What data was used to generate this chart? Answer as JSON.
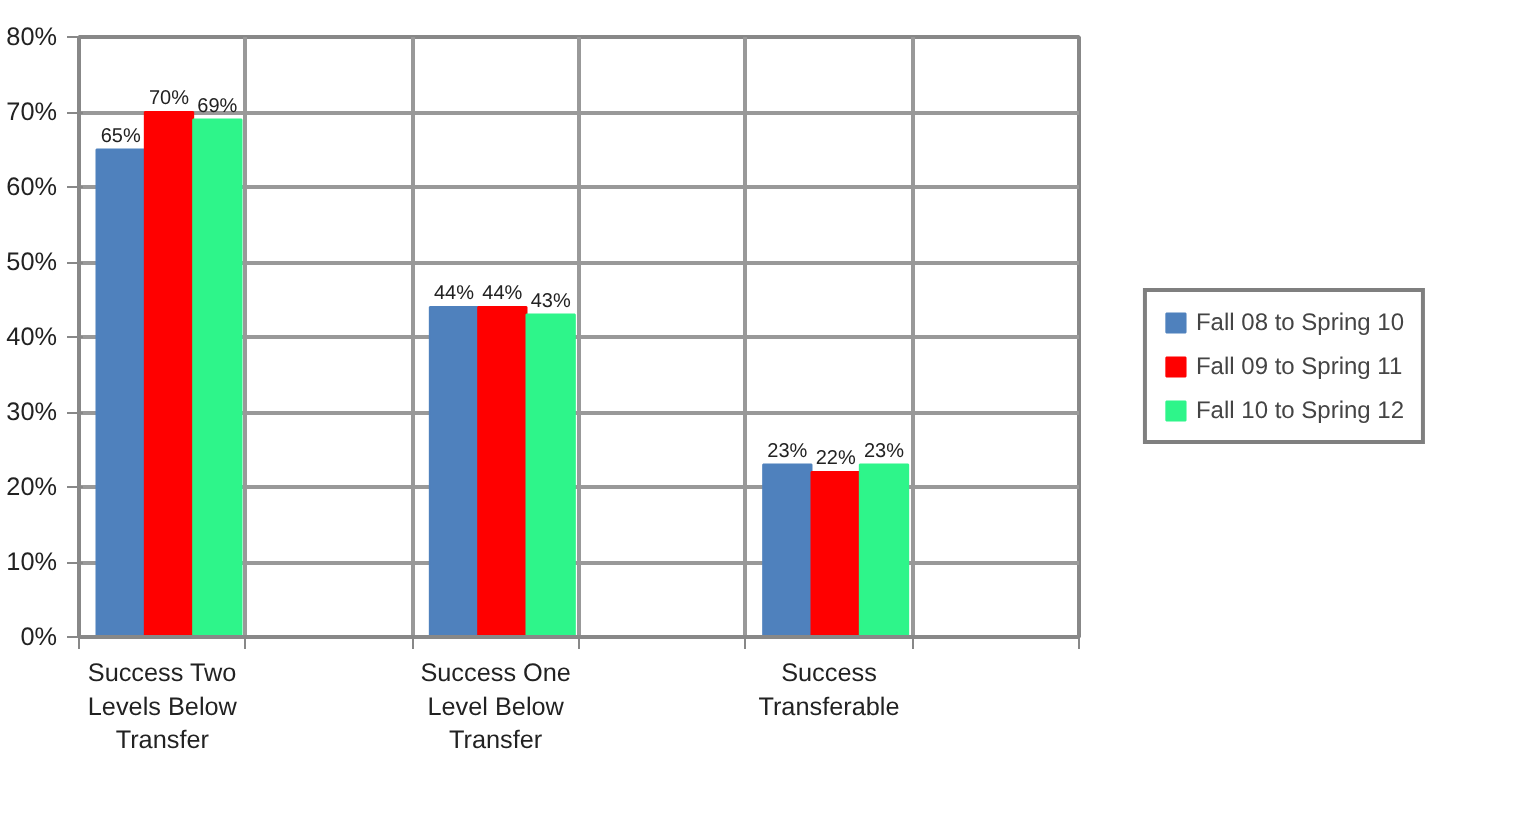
{
  "chart_data": {
    "type": "bar",
    "categories": [
      "Success Two Levels Below Transfer",
      null,
      "Success One Level Below Transfer",
      null,
      "Success Transferable",
      null
    ],
    "series": [
      {
        "name": "Fall 08 to Spring 10",
        "color": "#4f81bd",
        "values": [
          65,
          null,
          44,
          null,
          23,
          null
        ],
        "value_labels": [
          "65%",
          null,
          "44%",
          null,
          "23%",
          null
        ]
      },
      {
        "name": "Fall 09 to Spring 11",
        "color": "#ff0000",
        "values": [
          70,
          null,
          44,
          null,
          22,
          null
        ],
        "value_labels": [
          "70%",
          null,
          "44%",
          null,
          "22%",
          null
        ]
      },
      {
        "name": "Fall 10 to Spring 12",
        "color": "#2ef58a",
        "values": [
          69,
          null,
          43,
          null,
          23,
          null
        ],
        "value_labels": [
          "69%",
          null,
          "43%",
          null,
          "23%",
          null
        ]
      }
    ],
    "ylim": [
      0,
      80
    ],
    "yticks": [
      {
        "value": 0,
        "label": "0%"
      },
      {
        "value": 10,
        "label": "10%"
      },
      {
        "value": 20,
        "label": "20%"
      },
      {
        "value": 30,
        "label": "30%"
      },
      {
        "value": 40,
        "label": "40%"
      },
      {
        "value": 50,
        "label": "50%"
      },
      {
        "value": 60,
        "label": "60%"
      },
      {
        "value": 70,
        "label": "70%"
      },
      {
        "value": 80,
        "label": "80%"
      }
    ],
    "grid": true,
    "legend": "right"
  }
}
